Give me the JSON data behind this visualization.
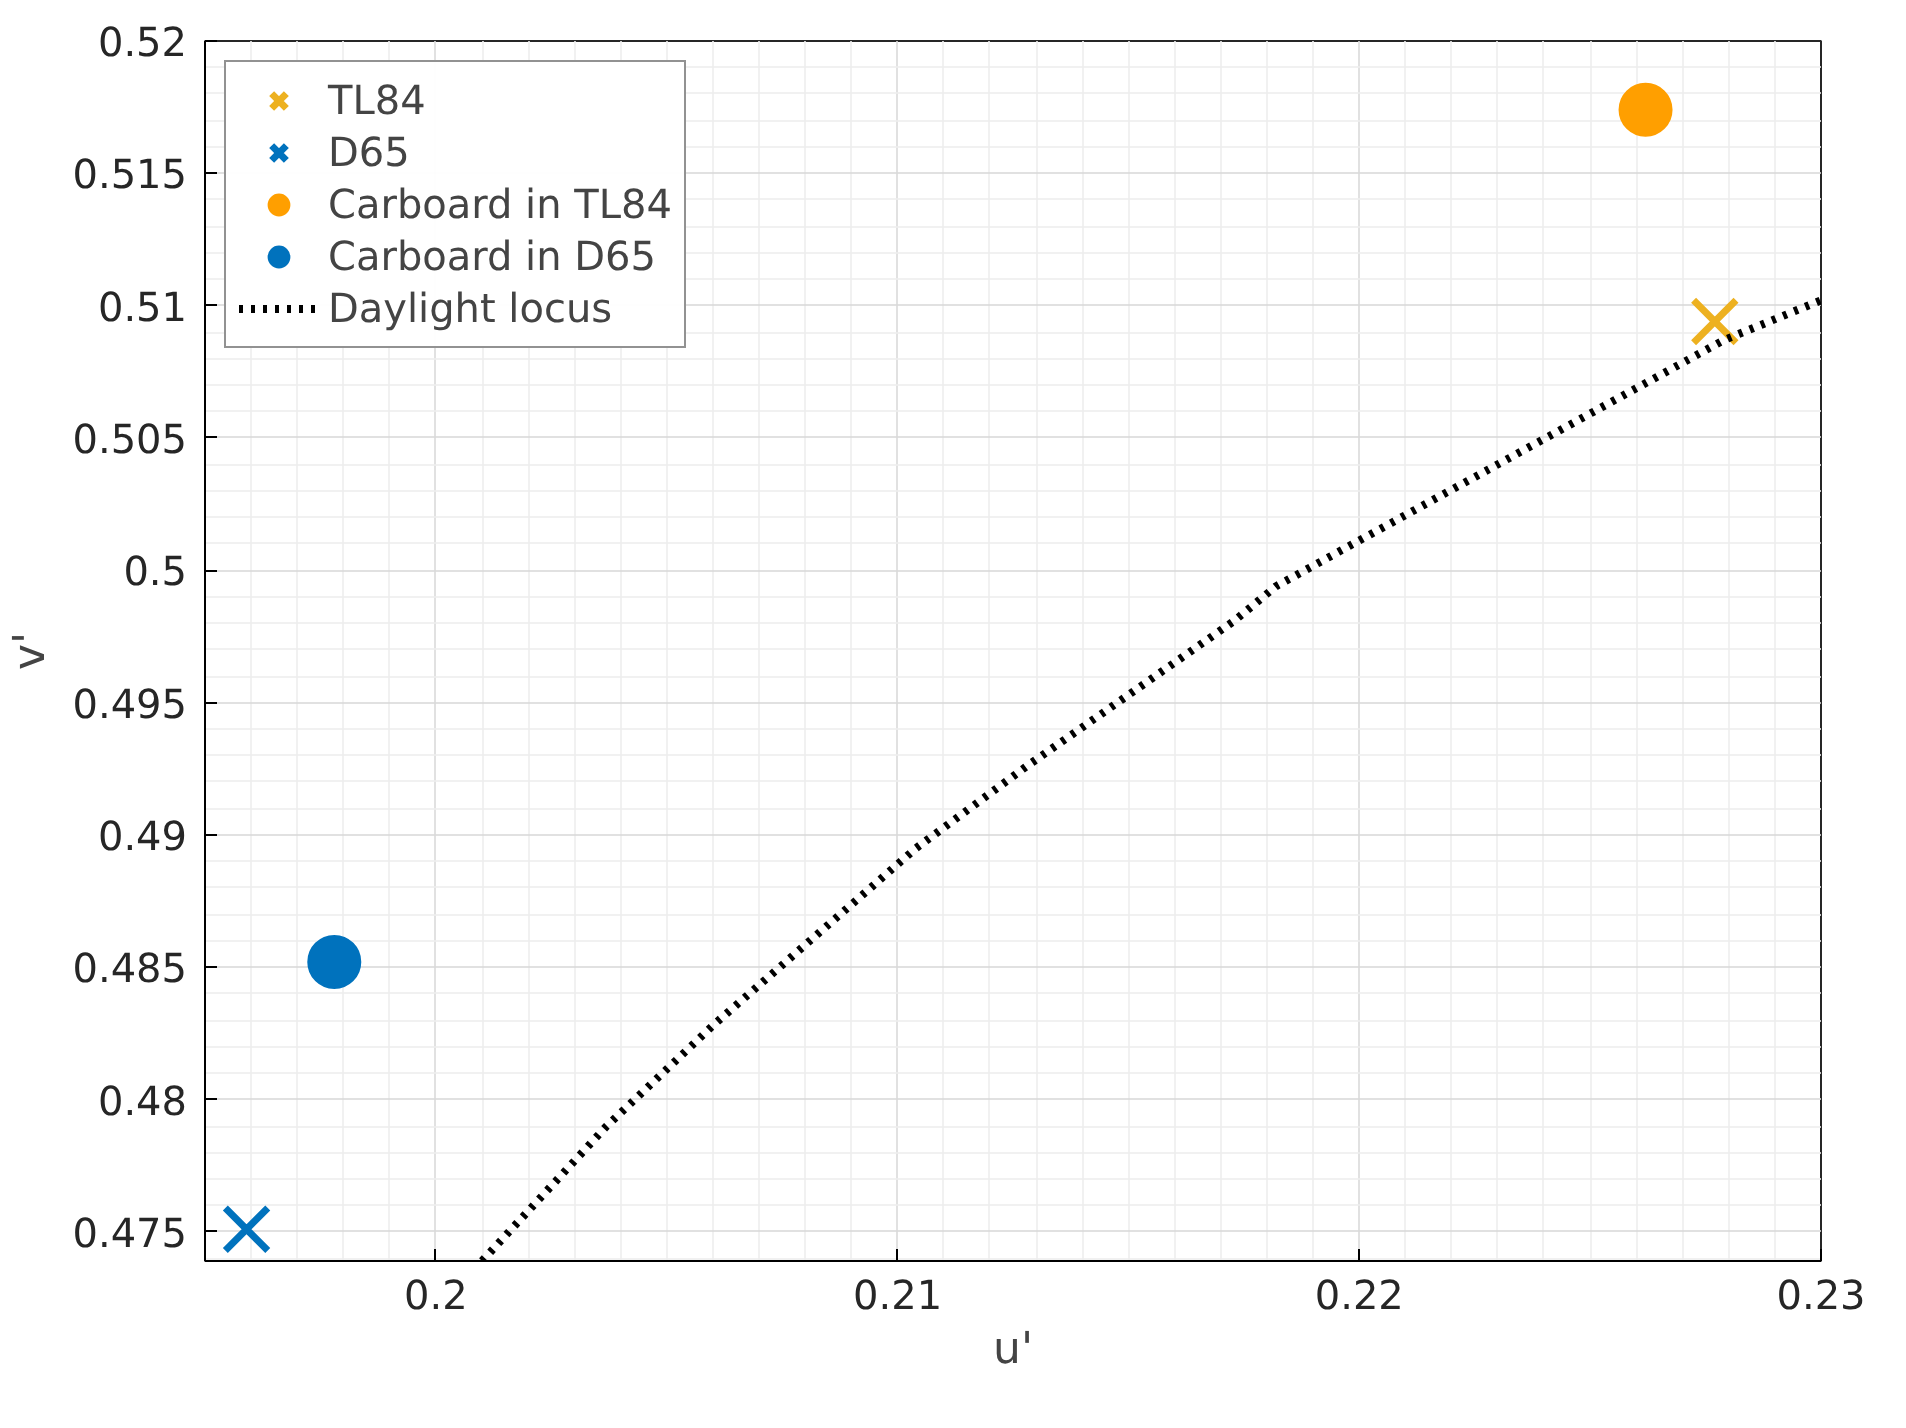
{
  "chart_data": {
    "type": "scatter",
    "xlabel": "u'",
    "ylabel": "v'",
    "xlim": [
      0.195,
      0.23
    ],
    "ylim": [
      0.4739,
      0.52
    ],
    "xticks": [
      0.2,
      0.21,
      0.22,
      0.23
    ],
    "yticks": [
      0.475,
      0.48,
      0.485,
      0.49,
      0.495,
      0.5,
      0.505,
      0.51,
      0.515,
      0.52
    ],
    "grid": true,
    "legend": "top left",
    "series": [
      {
        "name": "TL84",
        "marker": "cross",
        "color": "#edb120",
        "x": [
          0.2277
        ],
        "values": [
          0.5094
        ]
      },
      {
        "name": "D65",
        "marker": "cross",
        "color": "#0072bd",
        "x": [
          0.1959
        ],
        "values": [
          0.4751
        ]
      },
      {
        "name": "Carboard in TL84",
        "marker": "circle",
        "color": "#ff9f00",
        "x": [
          0.2262
        ],
        "values": [
          0.5174
        ]
      },
      {
        "name": "Carboard in D65",
        "marker": "circle",
        "color": "#0072bd",
        "x": [
          0.1978
        ],
        "values": [
          0.4852
        ]
      },
      {
        "name": "Daylight locus",
        "type": "line",
        "marker": "none",
        "line_style": "dotted",
        "color": "#000000",
        "x": [
          0.201,
          0.2037,
          0.206,
          0.2104,
          0.2128,
          0.2173,
          0.2182,
          0.2279,
          0.23
        ],
        "values": [
          0.4739,
          0.479,
          0.4828,
          0.4895,
          0.4926,
          0.4981,
          0.4994,
          0.5087,
          0.5102
        ]
      }
    ]
  }
}
